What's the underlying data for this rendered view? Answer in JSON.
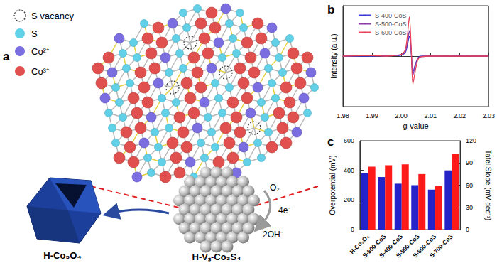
{
  "panel_labels": [
    "a",
    "b",
    "c"
  ],
  "diagram": {
    "legend": [
      {
        "label": "S vacancy",
        "marker": "dashed circle"
      },
      {
        "label": "S",
        "color": "#62d0e6"
      },
      {
        "label": "Co²⁺",
        "color": "#7b6ee0"
      },
      {
        "label": "Co³⁺",
        "color": "#e0504e"
      }
    ],
    "precursor": {
      "label": "H-Co₃O₄",
      "color": "#1d3f9c"
    },
    "product": {
      "label": "H-Vₛ-Co₃S₄"
    },
    "reaction": {
      "reactant": "O₂",
      "electrons": "4e⁻",
      "product": "2OH⁻"
    }
  },
  "chart_data": [
    {
      "type": "line",
      "x_label": "g-value",
      "y_label": "Intensity (a.u.)",
      "x": [
        1.98,
        1.99,
        1.995,
        1.999,
        2.0005,
        2.0015,
        2.0022,
        2.0028,
        2.0034,
        2.004,
        2.0048,
        2.0058,
        2.007,
        2.01,
        2.02,
        2.03
      ],
      "xlim": [
        1.98,
        2.03
      ],
      "xticks": [
        1.98,
        1.99,
        {
          "value": 2,
          "label": "2.00"
        },
        2.01,
        2.02,
        2.03
      ],
      "ylim": [
        -1,
        1
      ],
      "tick_labels": "x",
      "legend": "upper left",
      "grid": false,
      "series": [
        {
          "name": "S-400-CoS",
          "color": "#3a3ad8",
          "values": [
            0,
            0,
            0.01,
            0.01,
            0.03,
            0.08,
            0.24,
            0.4,
            0.1,
            -0.32,
            -0.17,
            -0.03,
            0,
            0,
            0.01,
            0
          ]
        },
        {
          "name": "S-500-CoS",
          "color": "#8a3fa8",
          "values": [
            0,
            0.01,
            0,
            0.02,
            0.04,
            0.1,
            0.3,
            0.5,
            0.12,
            -0.38,
            -0.2,
            -0.04,
            -0.01,
            0,
            0,
            0
          ]
        },
        {
          "name": "S-600-CoS",
          "color": "#e8425a",
          "values": [
            0,
            0.01,
            0,
            0.02,
            0.05,
            0.15,
            0.45,
            0.78,
            0.2,
            -0.55,
            -0.3,
            -0.06,
            -0.01,
            0,
            0,
            0
          ]
        }
      ]
    },
    {
      "type": "bar",
      "categories": [
        "H-Co₃O₄",
        "S-300-CoS",
        "S-400-CoS",
        "S-500-CoS",
        "S-600-CoS",
        "S-700-CoS"
      ],
      "y_label": "Overpotential (mV)",
      "y2_label": "Tafel Slope (mV dec⁻¹)",
      "ylim": [
        0,
        600
      ],
      "yticks": [
        0,
        200,
        400,
        600
      ],
      "y2lim": [
        0,
        120
      ],
      "y2ticks": [
        0,
        30,
        60,
        90,
        120
      ],
      "grid": false,
      "series": [
        {
          "color": "#2323c8",
          "values": [
            380,
            355,
            310,
            300,
            270,
            400
          ]
        },
        {
          "color": "#ff1a1a",
          "axis": "y2",
          "values": [
            85,
            87,
            88,
            75,
            59,
            102
          ]
        }
      ]
    }
  ]
}
